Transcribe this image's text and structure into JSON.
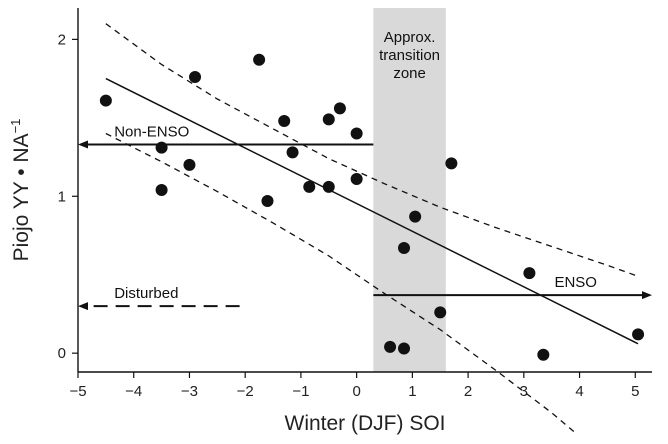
{
  "chart_data": {
    "type": "scatter",
    "title": "",
    "xlabel": "Winter (DJF) SOI",
    "ylabel_main": "Piojo YY • NA",
    "ylabel_sup": "−1",
    "xlim": [
      -5,
      5.3
    ],
    "ylim": [
      -0.12,
      2.2
    ],
    "x_ticks": [
      -5,
      -4,
      -3,
      -2,
      -1,
      0,
      1,
      2,
      3,
      4,
      5
    ],
    "x_tick_labels": [
      "−5",
      "−4",
      "−3",
      "−2",
      "−1",
      "0",
      "1",
      "2",
      "3",
      "4",
      "5"
    ],
    "y_ticks": [
      0,
      1,
      2
    ],
    "y_tick_labels": [
      "0",
      "1",
      "2"
    ],
    "points": [
      {
        "x": -4.5,
        "y": 1.61
      },
      {
        "x": -3.5,
        "y": 1.31
      },
      {
        "x": -3.5,
        "y": 1.04
      },
      {
        "x": -2.9,
        "y": 1.76
      },
      {
        "x": -3.0,
        "y": 1.2
      },
      {
        "x": -1.75,
        "y": 1.87
      },
      {
        "x": -1.6,
        "y": 0.97
      },
      {
        "x": -1.3,
        "y": 1.48
      },
      {
        "x": -1.15,
        "y": 1.28
      },
      {
        "x": -0.85,
        "y": 1.06
      },
      {
        "x": -0.5,
        "y": 1.49
      },
      {
        "x": -0.5,
        "y": 1.06
      },
      {
        "x": -0.3,
        "y": 1.56
      },
      {
        "x": 0.0,
        "y": 1.4
      },
      {
        "x": 0.0,
        "y": 1.11
      },
      {
        "x": 0.6,
        "y": 0.04
      },
      {
        "x": 0.85,
        "y": 0.03
      },
      {
        "x": 0.85,
        "y": 0.67
      },
      {
        "x": 1.05,
        "y": 0.87
      },
      {
        "x": 1.5,
        "y": 0.26
      },
      {
        "x": 1.7,
        "y": 1.21
      },
      {
        "x": 3.1,
        "y": 0.51
      },
      {
        "x": 3.35,
        "y": -0.01
      },
      {
        "x": 5.05,
        "y": 0.12
      }
    ],
    "regression_line": {
      "x": [
        -4.5,
        5.05
      ],
      "y": [
        1.75,
        0.06
      ]
    },
    "ci_upper": {
      "x": [
        -4.5,
        -3.5,
        -2.5,
        -1.5,
        -0.5,
        0.5,
        1.5,
        2.5,
        3.5,
        4.5,
        5.05
      ],
      "y": [
        2.1,
        1.84,
        1.62,
        1.43,
        1.24,
        1.08,
        0.93,
        0.8,
        0.68,
        0.56,
        0.49
      ]
    },
    "ci_lower": {
      "x": [
        -4.5,
        -3.5,
        -2.5,
        -1.5,
        -0.5,
        0.5,
        1.5,
        2.5,
        3.5,
        3.9
      ],
      "y": [
        1.4,
        1.22,
        1.03,
        0.83,
        0.62,
        0.38,
        0.15,
        -0.11,
        -0.38,
        -0.5
      ]
    },
    "transition_zone": {
      "x_start": 0.3,
      "x_end": 1.6,
      "label_lines": [
        "Approx.",
        "transition",
        "zone"
      ]
    },
    "annotations": {
      "non_enso": {
        "label": "Non-ENSO",
        "x_start": 0.3,
        "x_end": -5,
        "y": 1.33
      },
      "enso": {
        "label": "ENSO",
        "x_start": 0.3,
        "x_end": 5.3,
        "y": 0.37
      },
      "disturbed": {
        "label": "Disturbed",
        "x_start": -2.1,
        "x_end": -5,
        "y": 0.3
      }
    }
  }
}
